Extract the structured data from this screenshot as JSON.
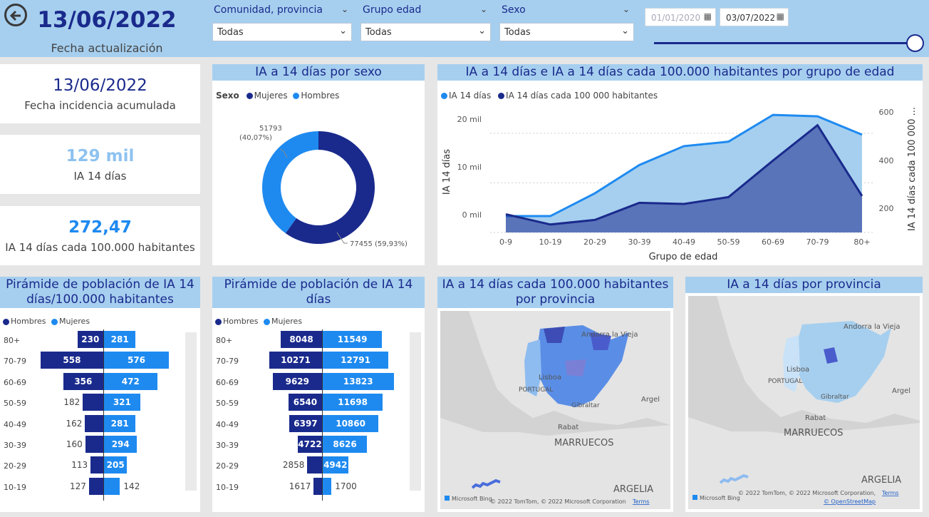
{
  "header": {
    "date": "13/06/2022",
    "date_label": "Fecha actualización",
    "filters": [
      {
        "label": "Comunidad, provincia",
        "value": "Todas"
      },
      {
        "label": "Grupo edad",
        "value": "Todas"
      },
      {
        "label": "Sexo",
        "value": "Todas"
      }
    ],
    "date_from": "01/01/2020",
    "date_to": "03/07/2022"
  },
  "kpis": [
    {
      "value": "13/06/2022",
      "label": "Fecha incidencia acumulada"
    },
    {
      "value": "129 mil",
      "label": "IA 14 días"
    },
    {
      "value": "272,47",
      "label": "IA 14 días cada 100.000 habitantes"
    }
  ],
  "colors": {
    "dark": "#1a2a8c",
    "light": "#1e8af0",
    "header": "#a6cfef"
  },
  "donut": {
    "title": "IA a 14 días por sexo",
    "legend_title": "Sexo",
    "legend": [
      "Mujeres",
      "Hombres"
    ],
    "label_a_1": "51793",
    "label_a_2": "(40,07%)",
    "label_b": "77455 (59,93%)"
  },
  "age_chart": {
    "title": "IA a 14 días e IA a 14 días cada 100.000 habitantes por grupo de edad",
    "legend": [
      "IA 14 días",
      "IA 14 días cada 100 000 habitantes"
    ],
    "ylabel": "IA 14 días",
    "y2label": "IA 14 días cada 100 000 ...",
    "xlabel": "Grupo de edad",
    "yticks": [
      "0 mil",
      "10 mil",
      "20 mil"
    ],
    "y2ticks": [
      "200",
      "400",
      "600"
    ]
  },
  "pyramid1": {
    "title": "Pirámide de población de IA 14 días/100.000 habitantes",
    "legend": [
      "Hombres",
      "Mujeres"
    ]
  },
  "pyramid2": {
    "title": "Pirámide de población de IA 14 días",
    "legend": [
      "Hombres",
      "Mujeres"
    ]
  },
  "map1": {
    "title": "IA a 14 días cada 100.000 habitantes por provincia",
    "labels": [
      "Andorra la Vieja",
      "Lisboa",
      "PORTUGAL",
      "Gibraltar",
      "Argel",
      "Rabat",
      "MARRUECOS",
      "ARGELIA"
    ],
    "attribution": "© 2022 TomTom, © 2022 Microsoft Corporation",
    "terms": "Terms",
    "bing": "Microsoft Bing"
  },
  "map2": {
    "title": "IA a 14 días por provincia",
    "labels": [
      "Andorra la Vieja",
      "Lisboa",
      "PORTUGAL",
      "Gibraltar",
      "Argel",
      "Rabat",
      "MARRUECOS",
      "ARGELIA"
    ],
    "attribution": "© 2022 TomTom, © 2022 Microsoft Corporation,",
    "terms": "Terms",
    "osm": "© OpenStreetMap",
    "bing": "Microsoft Bing"
  },
  "chart_data": [
    {
      "type": "area",
      "title": "IA a 14 días e IA a 14 días cada 100.000 habitantes por grupo de edad",
      "categories": [
        "0-9",
        "10-19",
        "20-29",
        "30-39",
        "40-49",
        "50-59",
        "60-69",
        "70-79",
        "80+"
      ],
      "xlabel": "Grupo de edad",
      "ylabel": "IA 14 días",
      "y2label": "IA 14 días cada 100 000 habitantes",
      "ylim": [
        0,
        24000
      ],
      "y2lim": [
        100,
        650
      ],
      "series": [
        {
          "name": "IA 14 días",
          "values": [
            3300,
            3300,
            7900,
            13600,
            17400,
            18300,
            23700,
            23400,
            19700
          ],
          "axis": "left",
          "kind": "area"
        },
        {
          "name": "IA 14 días cada 100 000 habitantes",
          "values": [
            180,
            135,
            155,
            230,
            225,
            255,
            415,
            570,
            260
          ],
          "axis": "right",
          "kind": "line"
        }
      ]
    },
    {
      "type": "pie",
      "title": "IA a 14 días por sexo",
      "categories": [
        "Mujeres",
        "Hombres"
      ],
      "values": [
        77455,
        51793
      ]
    },
    {
      "type": "bar",
      "title": "Pirámide de población de IA 14 días/100.000 habitantes",
      "categories": [
        "80+",
        "70-79",
        "60-69",
        "50-59",
        "40-49",
        "30-39",
        "20-29",
        "10-19"
      ],
      "series": [
        {
          "name": "Hombres",
          "values": [
            230,
            558,
            356,
            182,
            162,
            160,
            113,
            127
          ]
        },
        {
          "name": "Mujeres",
          "values": [
            281,
            576,
            472,
            321,
            281,
            294,
            205,
            142
          ]
        }
      ]
    },
    {
      "type": "bar",
      "title": "Pirámide de población de IA 14 días",
      "categories": [
        "80+",
        "70-79",
        "60-69",
        "50-59",
        "40-49",
        "30-39",
        "20-29",
        "10-19"
      ],
      "series": [
        {
          "name": "Hombres",
          "values": [
            8048,
            10271,
            9629,
            6540,
            6397,
            4722,
            2858,
            1617
          ]
        },
        {
          "name": "Mujeres",
          "values": [
            11549,
            12791,
            13823,
            11698,
            10860,
            8626,
            4942,
            1700
          ]
        }
      ]
    }
  ]
}
